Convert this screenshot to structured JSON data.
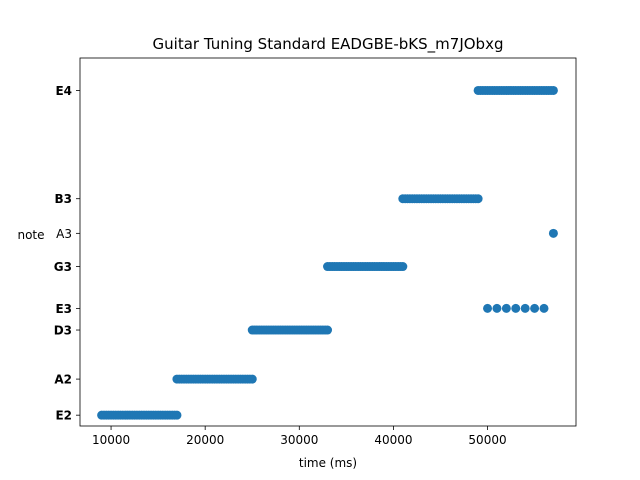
{
  "chart_data": {
    "type": "scatter",
    "title": "Guitar Tuning Standard EADGBE-bKS_m7JObxg",
    "xlabel": "time (ms)",
    "ylabel": "note",
    "xlim": [
      6700,
      59400
    ],
    "x_ticks": [
      10000,
      20000,
      30000,
      40000,
      50000
    ],
    "x_tick_labels": [
      "10000",
      "20000",
      "30000",
      "40000",
      "50000"
    ],
    "y_scale": "pitch (semitones, E2 = 0)",
    "ylim": [
      -0.75,
      24.75
    ],
    "y_ticks": [
      {
        "label": "E2",
        "value": 0,
        "bold": true
      },
      {
        "label": "A2",
        "value": 2.5,
        "bold": true
      },
      {
        "label": "D3",
        "value": 5.9,
        "bold": true
      },
      {
        "label": "E3",
        "value": 7.4,
        "bold": true
      },
      {
        "label": "G3",
        "value": 10.3,
        "bold": true
      },
      {
        "label": "A3",
        "value": 12.6,
        "bold": false
      },
      {
        "label": "B3",
        "value": 15,
        "bold": true
      },
      {
        "label": "E4",
        "value": 22.5,
        "bold": true
      }
    ],
    "series": [
      {
        "note": "E2",
        "y": 0,
        "x_start": 9000,
        "x_end": 17000,
        "x_step": 250
      },
      {
        "note": "A2",
        "y": 2.5,
        "x_start": 17000,
        "x_end": 25000,
        "x_step": 250
      },
      {
        "note": "D3",
        "y": 5.9,
        "x_start": 25000,
        "x_end": 33000,
        "x_step": 250
      },
      {
        "note": "G3",
        "y": 10.3,
        "x_start": 33000,
        "x_end": 41000,
        "x_step": 250
      },
      {
        "note": "B3",
        "y": 15,
        "x_start": 41000,
        "x_end": 49000,
        "x_step": 250
      },
      {
        "note": "E4",
        "y": 22.5,
        "x_start": 49000,
        "x_end": 57000,
        "x_step": 250
      },
      {
        "note": "E3",
        "y": 7.4,
        "x": [
          50000,
          51000,
          52000,
          53000,
          54000,
          55000,
          56000
        ]
      },
      {
        "note": "A3",
        "y": 12.6,
        "x": [
          57000
        ]
      }
    ],
    "marker_color": "#1f77b4",
    "grid": false,
    "legend": "none"
  }
}
